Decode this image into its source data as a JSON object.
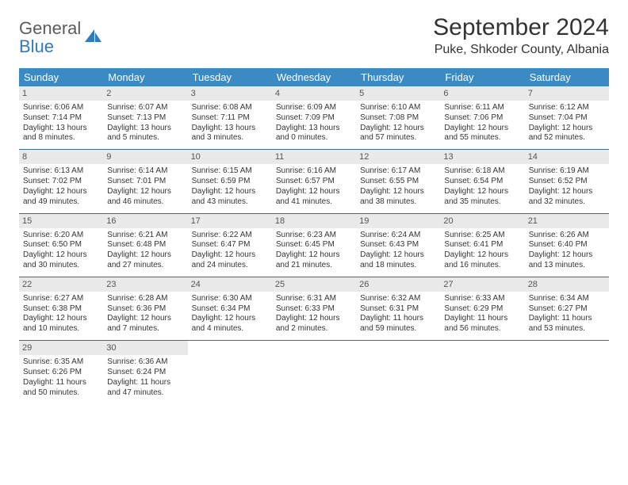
{
  "logo": {
    "line1": "General",
    "line2": "Blue"
  },
  "title": "September 2024",
  "location": "Puke, Shkoder County, Albania",
  "colors": {
    "header_bg": "#3b8ac4",
    "header_text": "#ffffff",
    "daynum_bg": "#e9e9e9",
    "row_border": "#3b6a8f",
    "logo_gray": "#5b5b5b",
    "logo_blue": "#2f7bbf",
    "body_text": "#333333"
  },
  "weekdays": [
    "Sunday",
    "Monday",
    "Tuesday",
    "Wednesday",
    "Thursday",
    "Friday",
    "Saturday"
  ],
  "days": [
    {
      "n": "1",
      "sunrise": "Sunrise: 6:06 AM",
      "sunset": "Sunset: 7:14 PM",
      "daylight1": "Daylight: 13 hours",
      "daylight2": "and 8 minutes."
    },
    {
      "n": "2",
      "sunrise": "Sunrise: 6:07 AM",
      "sunset": "Sunset: 7:13 PM",
      "daylight1": "Daylight: 13 hours",
      "daylight2": "and 5 minutes."
    },
    {
      "n": "3",
      "sunrise": "Sunrise: 6:08 AM",
      "sunset": "Sunset: 7:11 PM",
      "daylight1": "Daylight: 13 hours",
      "daylight2": "and 3 minutes."
    },
    {
      "n": "4",
      "sunrise": "Sunrise: 6:09 AM",
      "sunset": "Sunset: 7:09 PM",
      "daylight1": "Daylight: 13 hours",
      "daylight2": "and 0 minutes."
    },
    {
      "n": "5",
      "sunrise": "Sunrise: 6:10 AM",
      "sunset": "Sunset: 7:08 PM",
      "daylight1": "Daylight: 12 hours",
      "daylight2": "and 57 minutes."
    },
    {
      "n": "6",
      "sunrise": "Sunrise: 6:11 AM",
      "sunset": "Sunset: 7:06 PM",
      "daylight1": "Daylight: 12 hours",
      "daylight2": "and 55 minutes."
    },
    {
      "n": "7",
      "sunrise": "Sunrise: 6:12 AM",
      "sunset": "Sunset: 7:04 PM",
      "daylight1": "Daylight: 12 hours",
      "daylight2": "and 52 minutes."
    },
    {
      "n": "8",
      "sunrise": "Sunrise: 6:13 AM",
      "sunset": "Sunset: 7:02 PM",
      "daylight1": "Daylight: 12 hours",
      "daylight2": "and 49 minutes."
    },
    {
      "n": "9",
      "sunrise": "Sunrise: 6:14 AM",
      "sunset": "Sunset: 7:01 PM",
      "daylight1": "Daylight: 12 hours",
      "daylight2": "and 46 minutes."
    },
    {
      "n": "10",
      "sunrise": "Sunrise: 6:15 AM",
      "sunset": "Sunset: 6:59 PM",
      "daylight1": "Daylight: 12 hours",
      "daylight2": "and 43 minutes."
    },
    {
      "n": "11",
      "sunrise": "Sunrise: 6:16 AM",
      "sunset": "Sunset: 6:57 PM",
      "daylight1": "Daylight: 12 hours",
      "daylight2": "and 41 minutes."
    },
    {
      "n": "12",
      "sunrise": "Sunrise: 6:17 AM",
      "sunset": "Sunset: 6:55 PM",
      "daylight1": "Daylight: 12 hours",
      "daylight2": "and 38 minutes."
    },
    {
      "n": "13",
      "sunrise": "Sunrise: 6:18 AM",
      "sunset": "Sunset: 6:54 PM",
      "daylight1": "Daylight: 12 hours",
      "daylight2": "and 35 minutes."
    },
    {
      "n": "14",
      "sunrise": "Sunrise: 6:19 AM",
      "sunset": "Sunset: 6:52 PM",
      "daylight1": "Daylight: 12 hours",
      "daylight2": "and 32 minutes."
    },
    {
      "n": "15",
      "sunrise": "Sunrise: 6:20 AM",
      "sunset": "Sunset: 6:50 PM",
      "daylight1": "Daylight: 12 hours",
      "daylight2": "and 30 minutes."
    },
    {
      "n": "16",
      "sunrise": "Sunrise: 6:21 AM",
      "sunset": "Sunset: 6:48 PM",
      "daylight1": "Daylight: 12 hours",
      "daylight2": "and 27 minutes."
    },
    {
      "n": "17",
      "sunrise": "Sunrise: 6:22 AM",
      "sunset": "Sunset: 6:47 PM",
      "daylight1": "Daylight: 12 hours",
      "daylight2": "and 24 minutes."
    },
    {
      "n": "18",
      "sunrise": "Sunrise: 6:23 AM",
      "sunset": "Sunset: 6:45 PM",
      "daylight1": "Daylight: 12 hours",
      "daylight2": "and 21 minutes."
    },
    {
      "n": "19",
      "sunrise": "Sunrise: 6:24 AM",
      "sunset": "Sunset: 6:43 PM",
      "daylight1": "Daylight: 12 hours",
      "daylight2": "and 18 minutes."
    },
    {
      "n": "20",
      "sunrise": "Sunrise: 6:25 AM",
      "sunset": "Sunset: 6:41 PM",
      "daylight1": "Daylight: 12 hours",
      "daylight2": "and 16 minutes."
    },
    {
      "n": "21",
      "sunrise": "Sunrise: 6:26 AM",
      "sunset": "Sunset: 6:40 PM",
      "daylight1": "Daylight: 12 hours",
      "daylight2": "and 13 minutes."
    },
    {
      "n": "22",
      "sunrise": "Sunrise: 6:27 AM",
      "sunset": "Sunset: 6:38 PM",
      "daylight1": "Daylight: 12 hours",
      "daylight2": "and 10 minutes."
    },
    {
      "n": "23",
      "sunrise": "Sunrise: 6:28 AM",
      "sunset": "Sunset: 6:36 PM",
      "daylight1": "Daylight: 12 hours",
      "daylight2": "and 7 minutes."
    },
    {
      "n": "24",
      "sunrise": "Sunrise: 6:30 AM",
      "sunset": "Sunset: 6:34 PM",
      "daylight1": "Daylight: 12 hours",
      "daylight2": "and 4 minutes."
    },
    {
      "n": "25",
      "sunrise": "Sunrise: 6:31 AM",
      "sunset": "Sunset: 6:33 PM",
      "daylight1": "Daylight: 12 hours",
      "daylight2": "and 2 minutes."
    },
    {
      "n": "26",
      "sunrise": "Sunrise: 6:32 AM",
      "sunset": "Sunset: 6:31 PM",
      "daylight1": "Daylight: 11 hours",
      "daylight2": "and 59 minutes."
    },
    {
      "n": "27",
      "sunrise": "Sunrise: 6:33 AM",
      "sunset": "Sunset: 6:29 PM",
      "daylight1": "Daylight: 11 hours",
      "daylight2": "and 56 minutes."
    },
    {
      "n": "28",
      "sunrise": "Sunrise: 6:34 AM",
      "sunset": "Sunset: 6:27 PM",
      "daylight1": "Daylight: 11 hours",
      "daylight2": "and 53 minutes."
    },
    {
      "n": "29",
      "sunrise": "Sunrise: 6:35 AM",
      "sunset": "Sunset: 6:26 PM",
      "daylight1": "Daylight: 11 hours",
      "daylight2": "and 50 minutes."
    },
    {
      "n": "30",
      "sunrise": "Sunrise: 6:36 AM",
      "sunset": "Sunset: 6:24 PM",
      "daylight1": "Daylight: 11 hours",
      "daylight2": "and 47 minutes."
    }
  ]
}
